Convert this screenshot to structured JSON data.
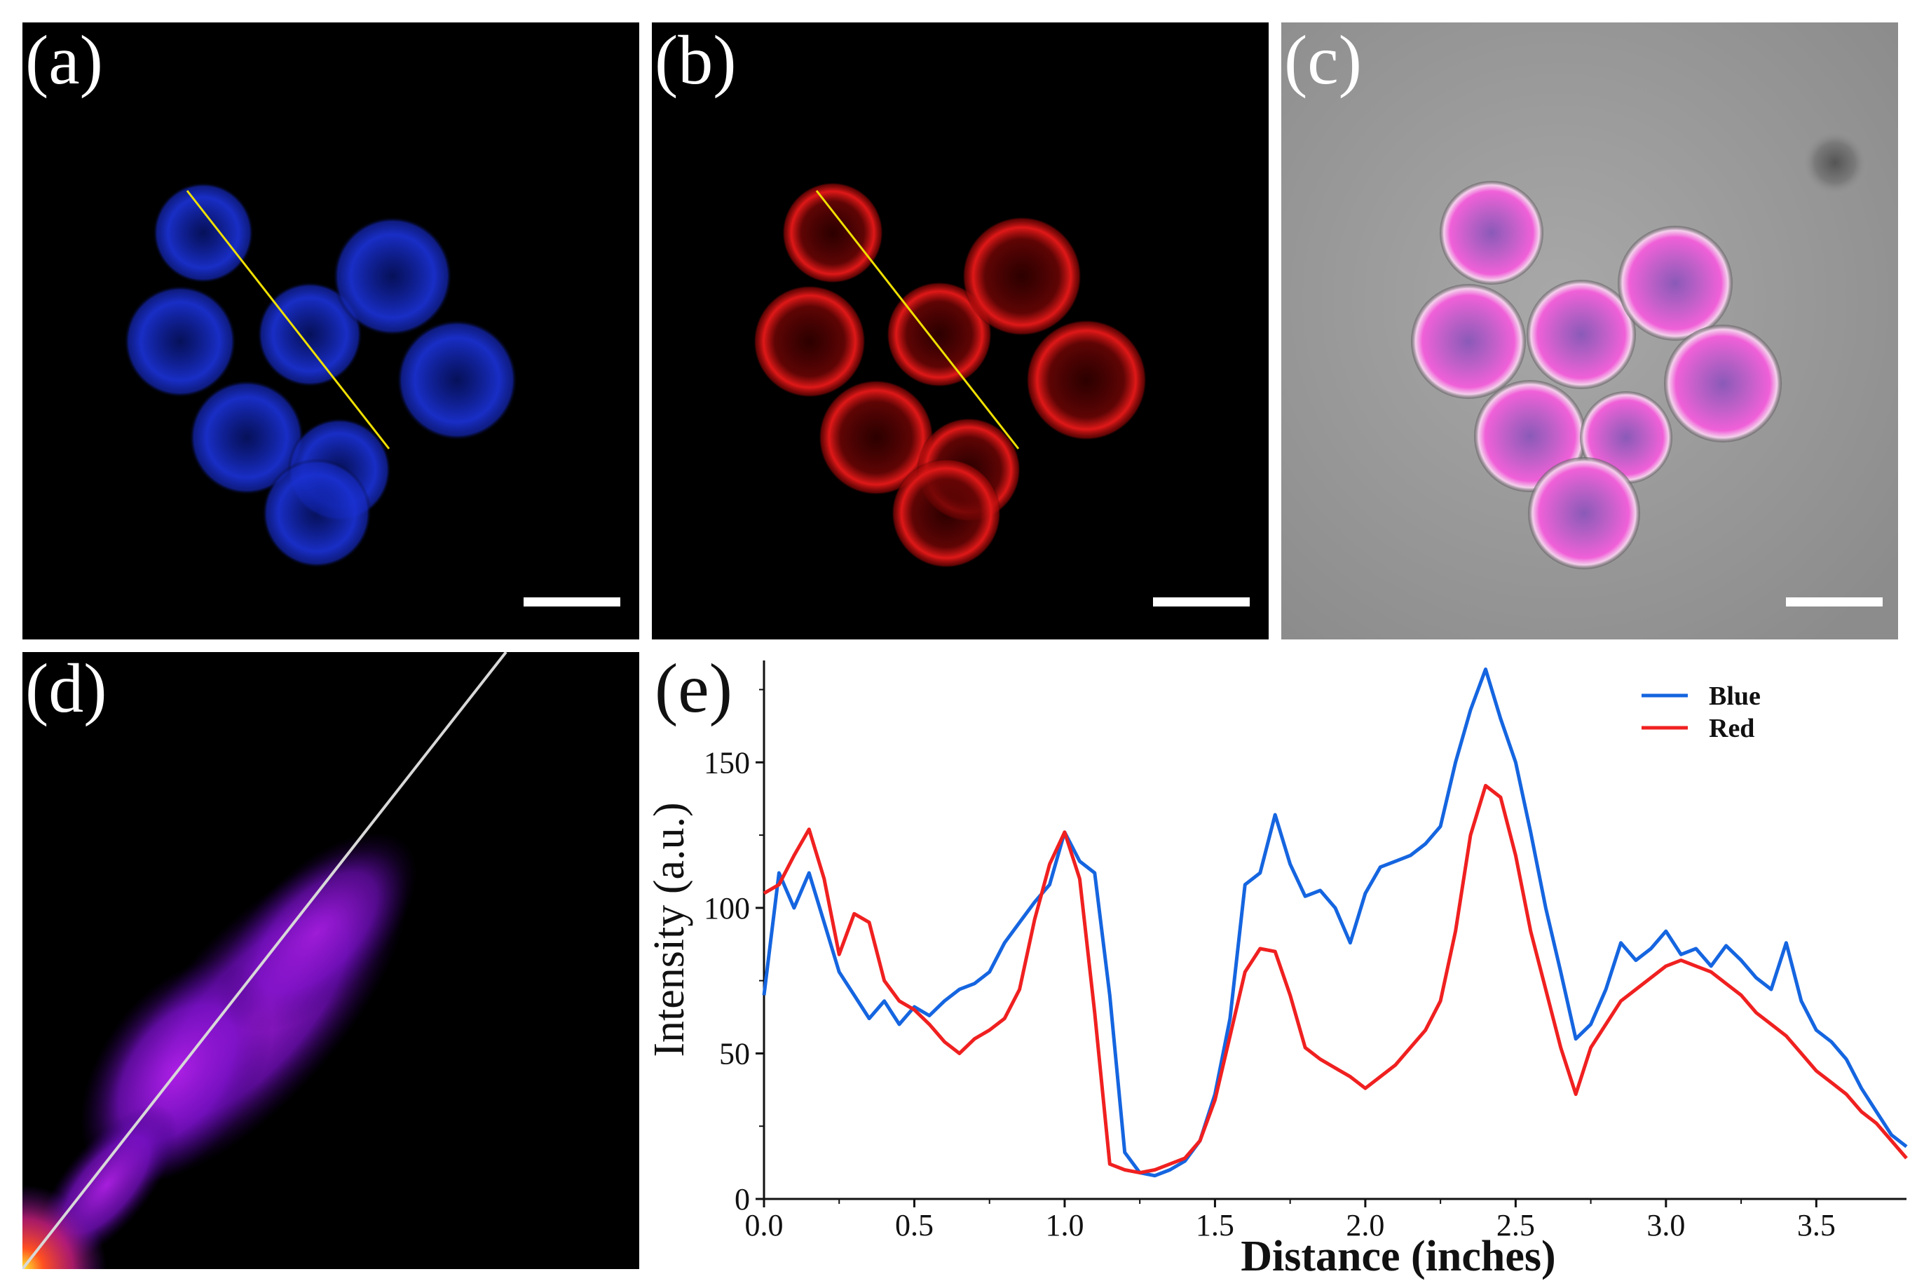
{
  "panels": {
    "a": {
      "label": "(a)",
      "description": "blue fluorescence channel"
    },
    "b": {
      "label": "(b)",
      "description": "red fluorescence channel"
    },
    "c": {
      "label": "(c)",
      "description": "merged brightfield overlay"
    },
    "d": {
      "label": "(d)",
      "description": "colocalization scatter plot"
    },
    "e": {
      "label": "(e)"
    }
  },
  "colors": {
    "blue_channel": "#1a2bd6",
    "red_channel": "#d61a1a",
    "line_profile": "#f0e000",
    "blue_series": "#1565e0",
    "red_series": "#f02020",
    "scatter": "#b020e8"
  },
  "chart_data": {
    "type": "line",
    "title": "",
    "xlabel": "Distance (inches)",
    "ylabel": "Intensity (a.u.)",
    "xlim": [
      0,
      3.8
    ],
    "ylim": [
      0,
      185
    ],
    "xticks": [
      "0.0",
      "0.5",
      "1.0",
      "1.5",
      "2.0",
      "2.5",
      "3.0",
      "3.5"
    ],
    "yticks": [
      "0",
      "50",
      "100",
      "150"
    ],
    "legend_position": "top-right",
    "series": [
      {
        "name": "Blue",
        "color": "#1565e0",
        "x": [
          0.0,
          0.05,
          0.1,
          0.15,
          0.2,
          0.25,
          0.3,
          0.35,
          0.4,
          0.45,
          0.5,
          0.55,
          0.6,
          0.65,
          0.7,
          0.75,
          0.8,
          0.85,
          0.9,
          0.95,
          1.0,
          1.05,
          1.1,
          1.15,
          1.2,
          1.25,
          1.3,
          1.35,
          1.4,
          1.45,
          1.5,
          1.55,
          1.6,
          1.65,
          1.7,
          1.75,
          1.8,
          1.85,
          1.9,
          1.95,
          2.0,
          2.05,
          2.1,
          2.15,
          2.2,
          2.25,
          2.3,
          2.35,
          2.4,
          2.45,
          2.5,
          2.55,
          2.6,
          2.65,
          2.7,
          2.75,
          2.8,
          2.85,
          2.9,
          2.95,
          3.0,
          3.05,
          3.1,
          3.15,
          3.2,
          3.25,
          3.3,
          3.35,
          3.4,
          3.45,
          3.5,
          3.55,
          3.6,
          3.65,
          3.7,
          3.75,
          3.8
        ],
        "values": [
          70,
          112,
          100,
          112,
          95,
          78,
          70,
          62,
          68,
          60,
          66,
          63,
          68,
          72,
          74,
          78,
          88,
          95,
          102,
          108,
          126,
          116,
          112,
          70,
          16,
          9,
          8,
          10,
          13,
          20,
          36,
          62,
          108,
          112,
          132,
          115,
          104,
          106,
          100,
          88,
          105,
          114,
          116,
          118,
          122,
          128,
          150,
          168,
          182,
          165,
          150,
          126,
          100,
          78,
          55,
          60,
          72,
          88,
          82,
          86,
          92,
          84,
          86,
          80,
          87,
          82,
          76,
          72,
          88,
          68,
          58,
          54,
          48,
          38,
          30,
          22,
          18
        ]
      },
      {
        "name": "Red",
        "color": "#f02020",
        "x": [
          0.0,
          0.05,
          0.1,
          0.15,
          0.2,
          0.25,
          0.3,
          0.35,
          0.4,
          0.45,
          0.5,
          0.55,
          0.6,
          0.65,
          0.7,
          0.75,
          0.8,
          0.85,
          0.9,
          0.95,
          1.0,
          1.05,
          1.1,
          1.15,
          1.2,
          1.25,
          1.3,
          1.35,
          1.4,
          1.45,
          1.5,
          1.55,
          1.6,
          1.65,
          1.7,
          1.75,
          1.8,
          1.85,
          1.9,
          1.95,
          2.0,
          2.05,
          2.1,
          2.15,
          2.2,
          2.25,
          2.3,
          2.35,
          2.4,
          2.45,
          2.5,
          2.55,
          2.6,
          2.65,
          2.7,
          2.75,
          2.8,
          2.85,
          2.9,
          2.95,
          3.0,
          3.05,
          3.1,
          3.15,
          3.2,
          3.25,
          3.3,
          3.35,
          3.4,
          3.45,
          3.5,
          3.55,
          3.6,
          3.65,
          3.7,
          3.75,
          3.8
        ],
        "values": [
          105,
          108,
          118,
          127,
          110,
          84,
          98,
          95,
          75,
          68,
          65,
          60,
          54,
          50,
          55,
          58,
          62,
          72,
          96,
          115,
          126,
          110,
          64,
          12,
          10,
          9,
          10,
          12,
          14,
          20,
          34,
          56,
          78,
          86,
          85,
          70,
          52,
          48,
          45,
          42,
          38,
          42,
          46,
          52,
          58,
          68,
          92,
          125,
          142,
          138,
          118,
          92,
          72,
          52,
          36,
          52,
          60,
          68,
          72,
          76,
          80,
          82,
          80,
          78,
          74,
          70,
          64,
          60,
          56,
          50,
          44,
          40,
          36,
          30,
          26,
          20,
          14
        ]
      }
    ]
  }
}
